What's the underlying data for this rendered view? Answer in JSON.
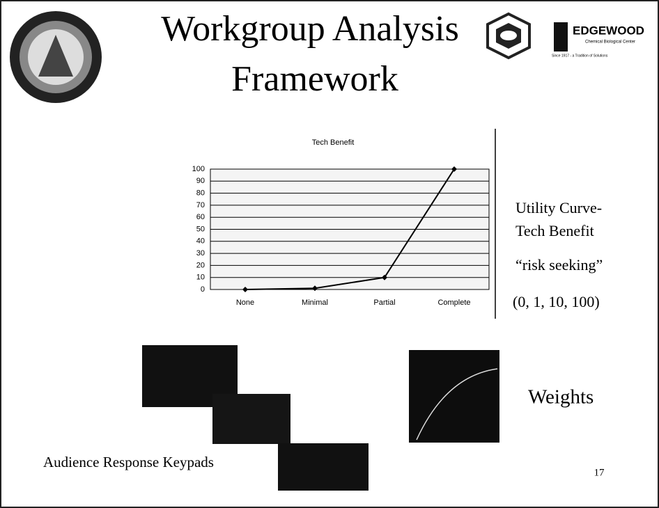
{
  "slide": {
    "title_lines": [
      "Workgroup Analysis",
      "Framework"
    ],
    "logo_name": "EDGEWOOD",
    "logo_subtitle": "Chemical Biological Center",
    "logo_tagline": "Since 1917 - a Tradition of Solutions",
    "side_lines": [
      "Utility Curve-",
      "Tech Benefit",
      "“risk seeking”",
      "(0, 1, 10, 100)"
    ],
    "weights_label": "Weights",
    "keypads_label": "Audience Response Keypads",
    "page_number": "17"
  },
  "chart_data": {
    "type": "line",
    "title": "Tech Benefit",
    "categories": [
      "None",
      "Minimal",
      "Partial",
      "Complete"
    ],
    "values": [
      0,
      1,
      10,
      100
    ],
    "color": "#000000",
    "ylim": [
      0,
      100
    ],
    "yticks": [
      0,
      10,
      20,
      30,
      40,
      50,
      60,
      70,
      80,
      90,
      100
    ],
    "grid": true
  }
}
